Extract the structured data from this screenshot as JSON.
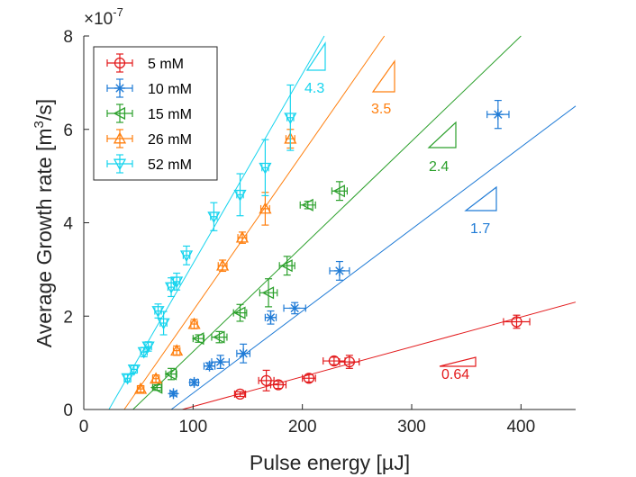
{
  "chart_data": {
    "type": "scatter",
    "xlabel": "Pulse energy [µJ]",
    "ylabel": "Average Growth rate [m",
    "ylabel_sup": "3",
    "ylabel_suffix": "/s]",
    "exponent_prefix": "×10",
    "exponent": "-7",
    "xlim": [
      0,
      450
    ],
    "ylim": [
      0,
      8
    ],
    "xticks": [
      "0",
      "100",
      "200",
      "300",
      "400"
    ],
    "xtick_values": [
      0,
      100,
      200,
      300,
      400
    ],
    "yticks": [
      "0",
      "2",
      "4",
      "6",
      "8"
    ],
    "ytick_values": [
      0,
      2,
      4,
      6,
      8
    ],
    "legend_position": "top-left",
    "series": [
      {
        "name": "5 mM",
        "color": "#e31a1c",
        "marker": "circle",
        "fit": {
          "x0": 90,
          "x1": 450,
          "y0": 0,
          "y1": 2.3
        },
        "slope_label": "0.64",
        "points": [
          [
            143,
            0.33,
            5,
            0.05
          ],
          [
            167,
            0.62,
            7,
            0.22
          ],
          [
            178,
            0.53,
            7,
            0.08
          ],
          [
            206,
            0.67,
            6,
            0.08
          ],
          [
            229,
            1.04,
            10,
            0.08
          ],
          [
            243,
            1.02,
            9,
            0.14
          ],
          [
            396,
            1.88,
            12,
            0.14
          ]
        ]
      },
      {
        "name": "10 mM",
        "color": "#1f7bd6",
        "marker": "asterisk",
        "fit": {
          "x0": 80,
          "x1": 450,
          "y0": 0,
          "y1": 6.5
        },
        "slope_label": "1.7",
        "points": [
          [
            82,
            0.34,
            3,
            0.05
          ],
          [
            101,
            0.58,
            4,
            0.06
          ],
          [
            115,
            0.93,
            5,
            0.07
          ],
          [
            125,
            1.02,
            8,
            0.14
          ],
          [
            146,
            1.2,
            6,
            0.2
          ],
          [
            171,
            1.97,
            5,
            0.14
          ],
          [
            193,
            2.17,
            10,
            0.12
          ],
          [
            234,
            2.97,
            9,
            0.2
          ],
          [
            379,
            6.32,
            10,
            0.3
          ]
        ]
      },
      {
        "name": "15 mM",
        "color": "#2ca02c",
        "marker": "triangle-left",
        "fit": {
          "x0": 45,
          "x1": 400,
          "y0": 0,
          "y1": 8
        },
        "slope_label": "2.4",
        "points": [
          [
            67,
            0.47,
            4,
            0.06
          ],
          [
            80,
            0.76,
            5,
            0.12
          ],
          [
            105,
            1.52,
            5,
            0.08
          ],
          [
            124,
            1.55,
            7,
            0.12
          ],
          [
            143,
            2.07,
            6,
            0.18
          ],
          [
            169,
            2.5,
            8,
            0.3
          ],
          [
            186,
            3.08,
            7,
            0.2
          ],
          [
            205,
            4.38,
            7,
            0.08
          ],
          [
            234,
            4.68,
            7,
            0.2
          ]
        ]
      },
      {
        "name": "26 mM",
        "color": "#ff7f0e",
        "marker": "triangle-up",
        "fit": {
          "x0": 37,
          "x1": 275,
          "y0": 0,
          "y1": 8
        },
        "slope_label": "3.5",
        "points": [
          [
            52,
            0.44,
            3,
            0.07
          ],
          [
            66,
            0.66,
            3,
            0.08
          ],
          [
            85,
            1.26,
            3,
            0.1
          ],
          [
            101,
            1.83,
            3,
            0.1
          ],
          [
            127,
            3.08,
            4,
            0.12
          ],
          [
            145,
            3.68,
            4,
            0.12
          ],
          [
            166,
            4.3,
            4,
            0.35
          ],
          [
            189,
            5.8,
            4,
            0.2
          ]
        ]
      },
      {
        "name": "52 mM",
        "color": "#17d4ee",
        "marker": "triangle-down",
        "fit": {
          "x0": 23,
          "x1": 220,
          "y0": 0,
          "y1": 8
        },
        "slope_label": "4.3",
        "points": [
          [
            40,
            0.67,
            3,
            0.08
          ],
          [
            46,
            0.86,
            3,
            0.08
          ],
          [
            55,
            1.23,
            3,
            0.1
          ],
          [
            59,
            1.35,
            3,
            0.1
          ],
          [
            68,
            2.11,
            3,
            0.15
          ],
          [
            73,
            1.85,
            3,
            0.25
          ],
          [
            80,
            2.62,
            3,
            0.2
          ],
          [
            85,
            2.74,
            3,
            0.18
          ],
          [
            94,
            3.3,
            3,
            0.2
          ],
          [
            119,
            4.13,
            3,
            0.3
          ],
          [
            143,
            4.6,
            3,
            0.45
          ],
          [
            166,
            5.18,
            3,
            0.6
          ],
          [
            189,
            6.25,
            3,
            0.7
          ]
        ]
      }
    ]
  }
}
